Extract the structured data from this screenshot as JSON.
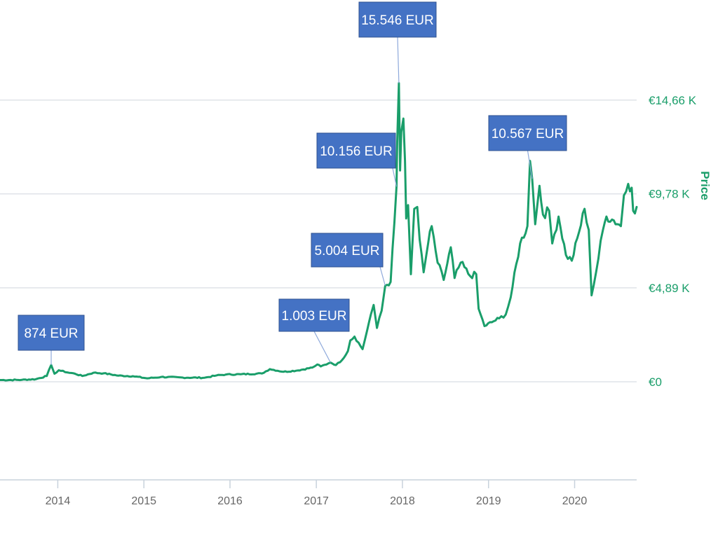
{
  "chart_data": {
    "type": "line",
    "ylabel": "Price",
    "ylim": [
      0,
      17500
    ],
    "xlim": [
      "2013-05-01",
      "2020-09-20"
    ],
    "y_ticks": [
      {
        "value": 0,
        "label": "€0"
      },
      {
        "value": 4890,
        "label": "€4,89 K"
      },
      {
        "value": 9780,
        "label": "€9,78 K"
      },
      {
        "value": 14660,
        "label": "€14,66 K"
      }
    ],
    "x_ticks": [
      {
        "value": "2014-01-01",
        "label": "2014"
      },
      {
        "value": "2015-01-01",
        "label": "2015"
      },
      {
        "value": "2016-01-01",
        "label": "2016"
      },
      {
        "value": "2017-01-01",
        "label": "2017"
      },
      {
        "value": "2018-01-01",
        "label": "2018"
      },
      {
        "value": "2019-01-01",
        "label": "2019"
      },
      {
        "value": "2020-01-01",
        "label": "2020"
      }
    ],
    "grid": true,
    "colors": {
      "line": "#1a9e6a",
      "annotation_fill": "#4472c4",
      "annotation_border": "#2f528f",
      "grid": "#dfe3e8"
    },
    "series": [
      {
        "points": [
          [
            "2013-05-01",
            90
          ],
          [
            "2013-08-01",
            100
          ],
          [
            "2013-10-01",
            140
          ],
          [
            "2013-11-15",
            300
          ],
          [
            "2013-12-04",
            874
          ],
          [
            "2013-12-18",
            420
          ],
          [
            "2014-01-05",
            600
          ],
          [
            "2014-02-10",
            490
          ],
          [
            "2014-03-15",
            420
          ],
          [
            "2014-04-15",
            300
          ],
          [
            "2014-06-01",
            470
          ],
          [
            "2014-07-15",
            440
          ],
          [
            "2014-09-15",
            320
          ],
          [
            "2014-11-15",
            290
          ],
          [
            "2015-01-15",
            180
          ],
          [
            "2015-03-15",
            250
          ],
          [
            "2015-06-15",
            220
          ],
          [
            "2015-09-15",
            210
          ],
          [
            "2015-11-05",
            330
          ],
          [
            "2015-12-15",
            380
          ],
          [
            "2016-02-15",
            390
          ],
          [
            "2016-05-15",
            430
          ],
          [
            "2016-06-18",
            660
          ],
          [
            "2016-08-15",
            520
          ],
          [
            "2016-10-15",
            590
          ],
          [
            "2016-12-15",
            740
          ],
          [
            "2017-01-05",
            900
          ],
          [
            "2017-01-20",
            800
          ],
          [
            "2017-02-20",
            950
          ],
          [
            "2017-03-02",
            1003
          ],
          [
            "2017-03-25",
            870
          ],
          [
            "2017-04-20",
            1130
          ],
          [
            "2017-05-15",
            1600
          ],
          [
            "2017-05-25",
            2150
          ],
          [
            "2017-06-12",
            2350
          ],
          [
            "2017-07-16",
            1700
          ],
          [
            "2017-08-05",
            2700
          ],
          [
            "2017-08-20",
            3500
          ],
          [
            "2017-09-01",
            4000
          ],
          [
            "2017-09-15",
            2800
          ],
          [
            "2017-10-05",
            3700
          ],
          [
            "2017-10-20",
            5004
          ],
          [
            "2017-11-12",
            5200
          ],
          [
            "2017-11-28",
            8300
          ],
          [
            "2017-12-07",
            10156
          ],
          [
            "2017-12-10",
            12500
          ],
          [
            "2017-12-17",
            15546
          ],
          [
            "2017-12-22",
            11000
          ],
          [
            "2017-12-27",
            13000
          ],
          [
            "2018-01-05",
            13700
          ],
          [
            "2018-01-12",
            11500
          ],
          [
            "2018-01-17",
            8500
          ],
          [
            "2018-01-25",
            9200
          ],
          [
            "2018-02-06",
            5600
          ],
          [
            "2018-02-20",
            9000
          ],
          [
            "2018-03-05",
            9100
          ],
          [
            "2018-03-15",
            7400
          ],
          [
            "2018-04-01",
            5700
          ],
          [
            "2018-04-20",
            7200
          ],
          [
            "2018-05-05",
            8100
          ],
          [
            "2018-05-30",
            6200
          ],
          [
            "2018-06-25",
            5300
          ],
          [
            "2018-07-25",
            7000
          ],
          [
            "2018-08-10",
            5400
          ],
          [
            "2018-09-05",
            6200
          ],
          [
            "2018-10-15",
            5500
          ],
          [
            "2018-11-10",
            5600
          ],
          [
            "2018-11-20",
            3800
          ],
          [
            "2018-12-15",
            2900
          ],
          [
            "2019-01-15",
            3100
          ],
          [
            "2019-02-15",
            3300
          ],
          [
            "2019-03-15",
            3500
          ],
          [
            "2019-04-05",
            4400
          ],
          [
            "2019-05-15",
            7200
          ],
          [
            "2019-06-15",
            8100
          ],
          [
            "2019-06-26",
            11500
          ],
          [
            "2019-07-05",
            10567
          ],
          [
            "2019-07-18",
            8200
          ],
          [
            "2019-08-05",
            10200
          ],
          [
            "2019-08-20",
            8700
          ],
          [
            "2019-09-15",
            8900
          ],
          [
            "2019-09-28",
            7200
          ],
          [
            "2019-10-25",
            8600
          ],
          [
            "2019-11-25",
            6600
          ],
          [
            "2019-12-20",
            6300
          ],
          [
            "2020-01-20",
            7800
          ],
          [
            "2020-02-12",
            9000
          ],
          [
            "2020-03-01",
            7900
          ],
          [
            "2020-03-13",
            4500
          ],
          [
            "2020-04-01",
            5700
          ],
          [
            "2020-04-30",
            7900
          ],
          [
            "2020-05-15",
            8600
          ],
          [
            "2020-06-15",
            8400
          ],
          [
            "2020-07-15",
            8100
          ],
          [
            "2020-07-28",
            9700
          ],
          [
            "2020-08-15",
            10300
          ],
          [
            "2020-08-30",
            10100
          ],
          [
            "2020-09-05",
            8900
          ],
          [
            "2020-09-20",
            9100
          ]
        ]
      }
    ],
    "annotations": [
      {
        "date": "2013-12-04",
        "value": 874,
        "label": "874 EUR"
      },
      {
        "date": "2017-03-02",
        "value": 1003,
        "label": "1.003 EUR"
      },
      {
        "date": "2017-10-20",
        "value": 5004,
        "label": "5.004 EUR"
      },
      {
        "date": "2017-12-07",
        "value": 10156,
        "label": "10.156 EUR"
      },
      {
        "date": "2017-12-17",
        "value": 15546,
        "label": "15.546 EUR"
      },
      {
        "date": "2019-07-05",
        "value": 10567,
        "label": "10.567 EUR"
      }
    ]
  }
}
